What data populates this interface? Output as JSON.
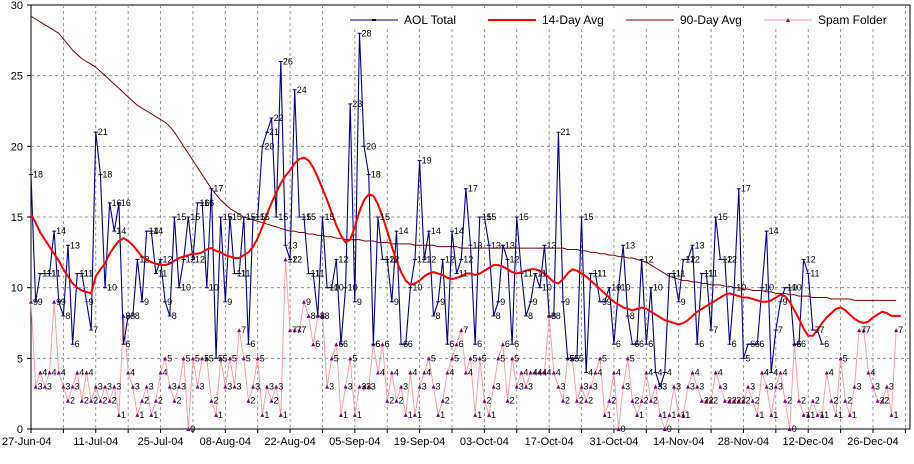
{
  "chart_data": {
    "type": "line",
    "title": "",
    "xlabel": "",
    "ylabel": "",
    "ylim": [
      0,
      30
    ],
    "yticks": [
      0,
      5,
      10,
      15,
      20,
      25,
      30
    ],
    "xlim": [
      0,
      190
    ],
    "xtick_labels": [
      "27-Jun-04",
      "11-Jul-04",
      "25-Jul-04",
      "08-Aug-04",
      "22-Aug-04",
      "05-Sep-04",
      "19-Sep-04",
      "03-Oct-04",
      "17-Oct-04",
      "31-Oct-04",
      "14-Nov-04",
      "28-Nov-04",
      "12-Dec-04",
      "26-Dec-04"
    ],
    "xtick_days": [
      0,
      14,
      28,
      42,
      56,
      70,
      84,
      98,
      112,
      126,
      140,
      154,
      168,
      182
    ],
    "grid": true,
    "legend_position": "top",
    "colors": {
      "aol": "#000080",
      "avg14": "#ff0000",
      "avg90": "#800000",
      "spam": "#ff9999",
      "spam_marker": "#800080",
      "grid": "#808080"
    },
    "series": [
      {
        "name": "AOL Total",
        "start_day": 0,
        "values": [
          18,
          9,
          11,
          11,
          11,
          14,
          9,
          8,
          13,
          6,
          11,
          11,
          9,
          7,
          21,
          18,
          10,
          16,
          14,
          16,
          6,
          8,
          8,
          12,
          9,
          14,
          14,
          11,
          12,
          9,
          8,
          15,
          10,
          12,
          15,
          12,
          16,
          16,
          10,
          17,
          5,
          15,
          9,
          15,
          11,
          11,
          15,
          6,
          15,
          15,
          20,
          21,
          22,
          15,
          26,
          13,
          12,
          24,
          15,
          15,
          11,
          11,
          8,
          15,
          10,
          10,
          12,
          6,
          10,
          23,
          9,
          28,
          20,
          18,
          6,
          15,
          12,
          12,
          9,
          14,
          6,
          6,
          10,
          12,
          19,
          12,
          14,
          8,
          9,
          12,
          6,
          14,
          11,
          12,
          17,
          13,
          6,
          15,
          15,
          13,
          8,
          9,
          13,
          12,
          6,
          15,
          11,
          8,
          9,
          11,
          10,
          13,
          8,
          8,
          21,
          9,
          5,
          5,
          5,
          15,
          4,
          11,
          11,
          9,
          9,
          10,
          6,
          10,
          13,
          8,
          6,
          6,
          12,
          6,
          10,
          4,
          3,
          4,
          11,
          11,
          9,
          12,
          12,
          13,
          6,
          11,
          11,
          7,
          15,
          12,
          12,
          6,
          10,
          17,
          5,
          6,
          6,
          6,
          10,
          14,
          4,
          7,
          9,
          10,
          10,
          6,
          6,
          12,
          11,
          7,
          7,
          6
        ],
        "labels": [
          18,
          9,
          11,
          11,
          11,
          14,
          9,
          8,
          13,
          6,
          11,
          11,
          9,
          7,
          21,
          18,
          10,
          16,
          14,
          16,
          6,
          8,
          8,
          12,
          9,
          14,
          14,
          11,
          12,
          9,
          8,
          15,
          10,
          12,
          15,
          12,
          16,
          16,
          10,
          17,
          5,
          15,
          9,
          15,
          11,
          11,
          15,
          6,
          15,
          15,
          20,
          21,
          22,
          15,
          26,
          13,
          12,
          24,
          15,
          15,
          11,
          11,
          8,
          15,
          10,
          10,
          12,
          6,
          10,
          23,
          9,
          28,
          20,
          18,
          6,
          15,
          12,
          12,
          9,
          14,
          6,
          6,
          10,
          12,
          19,
          12,
          14,
          8,
          9,
          12,
          6,
          14,
          11,
          12,
          17,
          13,
          6,
          15,
          15,
          13,
          8,
          9,
          13,
          12,
          6,
          15,
          11,
          8,
          9,
          11,
          10,
          13,
          8,
          8,
          21,
          9,
          5,
          5,
          5,
          15,
          4,
          11,
          11,
          9,
          9,
          10,
          6,
          10,
          13,
          8,
          6,
          6,
          12,
          6,
          10,
          4,
          3,
          4,
          11,
          11,
          9,
          12,
          12,
          13,
          6,
          11,
          11,
          7,
          15,
          12,
          12,
          6,
          10,
          17,
          5,
          6,
          6,
          6,
          10,
          14,
          4,
          7,
          9,
          10,
          10,
          6,
          6,
          12,
          11,
          7,
          7,
          6
        ]
      },
      {
        "name": "14-Day Avg",
        "start_day": 0,
        "values": [
          15.2,
          14.6,
          13.9,
          13.4,
          12.9,
          12.4,
          11.9,
          11.3,
          10.8,
          10.3,
          10.0,
          9.8,
          9.7,
          9.6,
          10.8,
          11.3,
          11.7,
          12.4,
          12.9,
          13.3,
          13.5,
          13.3,
          13.0,
          12.6,
          12.2,
          12.0,
          11.8,
          11.7,
          11.6,
          11.6,
          11.7,
          11.9,
          12.1,
          12.2,
          12.3,
          12.4,
          12.4,
          12.5,
          12.7,
          12.8,
          12.6,
          12.5,
          12.3,
          12.2,
          12.1,
          12.1,
          12.3,
          12.5,
          12.9,
          13.5,
          14.3,
          15.2,
          16.0,
          16.7,
          17.4,
          17.9,
          18.3,
          18.8,
          19.1,
          19.2,
          19.0,
          18.5,
          17.8,
          17.0,
          16.2,
          15.3,
          14.4,
          13.7,
          13.2,
          13.4,
          14.3,
          15.4,
          16.2,
          16.6,
          16.5,
          15.9,
          15.0,
          14.0,
          12.9,
          11.9,
          11.1,
          10.5,
          10.2,
          10.3,
          10.5,
          10.8,
          11.0,
          11.1,
          11.0,
          10.9,
          10.7,
          10.6,
          10.7,
          10.8,
          11.0,
          11.0,
          10.9,
          11.0,
          11.2,
          11.4,
          11.6,
          11.6,
          11.5,
          11.3,
          11.1,
          11.0,
          11.1,
          11.2,
          11.3,
          11.3,
          11.2,
          11.0,
          10.7,
          10.4,
          10.3,
          10.6,
          11.0,
          11.3,
          11.2,
          11.0,
          10.8,
          10.5,
          10.2,
          9.9,
          9.6,
          9.3,
          9.0,
          8.8,
          8.6,
          8.5,
          8.4,
          8.5,
          8.6,
          8.5,
          8.3,
          8.1,
          7.9,
          7.7,
          7.6,
          7.5,
          7.4,
          7.5,
          7.7,
          8.0,
          8.3,
          8.5,
          8.7,
          8.9,
          9.1,
          9.3,
          9.5,
          9.6,
          9.5,
          9.4,
          9.3,
          9.3,
          9.2,
          9.1,
          9.0,
          9.0,
          9.1,
          9.3,
          9.5,
          9.4,
          9.0,
          8.4,
          7.8,
          7.1,
          6.6,
          6.6,
          7.0,
          7.5,
          7.9,
          8.2,
          8.5,
          8.6,
          8.4,
          8.1,
          7.8,
          7.6,
          7.5,
          7.6,
          7.9,
          8.1,
          8.3,
          8.2,
          8.0,
          8.0,
          8.0
        ],
        "labels": []
      },
      {
        "name": "90-Day Avg",
        "start_day": 0,
        "values": [
          29.2,
          29.0,
          28.8,
          28.6,
          28.4,
          28.2,
          28.0,
          27.6,
          27.2,
          26.8,
          26.5,
          26.2,
          26.0,
          25.8,
          25.6,
          25.3,
          25.0,
          24.7,
          24.4,
          24.1,
          23.8,
          23.5,
          23.2,
          22.9,
          22.7,
          22.5,
          22.3,
          22.1,
          21.9,
          21.7,
          21.4,
          21.0,
          20.5,
          20.0,
          19.5,
          19.0,
          18.5,
          18.0,
          17.5,
          17.0,
          16.6,
          16.2,
          15.9,
          15.6,
          15.4,
          15.2,
          15.0,
          14.9,
          14.8,
          14.7,
          14.6,
          14.5,
          14.4,
          14.3,
          14.2,
          14.1,
          14.0,
          14.0,
          13.9,
          13.9,
          13.8,
          13.8,
          13.7,
          13.7,
          13.6,
          13.6,
          13.5,
          13.5,
          13.4,
          13.4,
          13.4,
          13.4,
          13.3,
          13.3,
          13.3,
          13.2,
          13.2,
          13.2,
          13.1,
          13.1,
          13.1,
          13.1,
          13.1,
          13.0,
          13.0,
          13.0,
          13.0,
          13.0,
          12.9,
          12.9,
          12.9,
          12.9,
          12.9,
          12.8,
          12.8,
          12.8,
          12.8,
          12.8,
          12.8,
          12.8,
          12.8,
          12.8,
          12.8,
          12.8,
          12.8,
          12.8,
          12.8,
          12.8,
          12.8,
          12.8,
          12.8,
          12.8,
          12.8,
          12.8,
          12.8,
          12.8,
          12.7,
          12.7,
          12.7,
          12.6,
          12.6,
          12.5,
          12.5,
          12.4,
          12.4,
          12.3,
          12.3,
          12.2,
          12.2,
          12.1,
          12.1,
          12.0,
          11.9,
          11.8,
          11.6,
          11.4,
          11.2,
          11.0,
          10.8,
          10.7,
          10.6,
          10.5,
          10.5,
          10.4,
          10.4,
          10.3,
          10.3,
          10.2,
          10.2,
          10.2,
          10.1,
          10.1,
          10.0,
          10.0,
          9.9,
          9.9,
          9.8,
          9.8,
          9.8,
          9.7,
          9.7,
          9.6,
          9.6,
          9.6,
          9.5,
          9.5,
          9.4,
          9.4,
          9.4,
          9.3,
          9.3,
          9.3,
          9.3,
          9.2,
          9.2,
          9.2,
          9.2,
          9.2,
          9.1,
          9.1,
          9.1,
          9.1,
          9.1,
          9.1,
          9.1,
          9.1,
          9.1,
          9.1
        ],
        "labels": []
      },
      {
        "name": "Spam Folder",
        "start_day": 0,
        "values": [
          9,
          3,
          4,
          3,
          4,
          9,
          4,
          3,
          2,
          3,
          4,
          2,
          4,
          2,
          3,
          2,
          3,
          2,
          3,
          1,
          8,
          4,
          3,
          1,
          2,
          3,
          1,
          2,
          4,
          5,
          3,
          2,
          3,
          5,
          0,
          5,
          3,
          5,
          5,
          2,
          1,
          5,
          3,
          5,
          3,
          7,
          5,
          2,
          3,
          5,
          1,
          3,
          2,
          3,
          1,
          12,
          7,
          7,
          7,
          9,
          8,
          6,
          8,
          8,
          3,
          5,
          6,
          1,
          3,
          5,
          1,
          3,
          3,
          3,
          6,
          4,
          6,
          2,
          4,
          2,
          3,
          1,
          4,
          1,
          3,
          4,
          5,
          3,
          1,
          2,
          4,
          5,
          6,
          7,
          4,
          5,
          1,
          5,
          2,
          1,
          3,
          5,
          6,
          2,
          5,
          3,
          4,
          3,
          4,
          4,
          4,
          4,
          8,
          4,
          3,
          2,
          5,
          5,
          2,
          3,
          2,
          3,
          4,
          5,
          1,
          2,
          4,
          0,
          3,
          5,
          2,
          1,
          2,
          4,
          2,
          3,
          1,
          0,
          1,
          3,
          1,
          1,
          3,
          4,
          3,
          2,
          2,
          2,
          4,
          3,
          2,
          2,
          2,
          2,
          2,
          3,
          2,
          1,
          4,
          3,
          1,
          3,
          4,
          2,
          0,
          6,
          2,
          1,
          1,
          2,
          1,
          1,
          4,
          2,
          1,
          5,
          2,
          1,
          3,
          7,
          7,
          4,
          3,
          2,
          2,
          3,
          1,
          7
        ],
        "labels": [
          9,
          3,
          4,
          3,
          4,
          9,
          4,
          3,
          2,
          3,
          4,
          2,
          4,
          2,
          3,
          2,
          3,
          2,
          3,
          1,
          8,
          4,
          3,
          1,
          2,
          3,
          1,
          2,
          4,
          5,
          3,
          2,
          3,
          5,
          0,
          5,
          3,
          5,
          5,
          2,
          1,
          5,
          3,
          5,
          3,
          7,
          5,
          2,
          3,
          5,
          1,
          3,
          2,
          3,
          1,
          12,
          7,
          7,
          7,
          9,
          8,
          6,
          8,
          8,
          3,
          5,
          6,
          1,
          3,
          5,
          1,
          3,
          3,
          3,
          6,
          4,
          6,
          2,
          4,
          2,
          3,
          1,
          4,
          1,
          3,
          4,
          5,
          3,
          1,
          2,
          4,
          5,
          6,
          7,
          4,
          5,
          1,
          5,
          2,
          1,
          3,
          5,
          6,
          2,
          5,
          3,
          4,
          3,
          4,
          4,
          4,
          4,
          8,
          4,
          3,
          2,
          5,
          5,
          2,
          3,
          2,
          3,
          4,
          5,
          1,
          2,
          4,
          0,
          3,
          5,
          2,
          1,
          2,
          4,
          2,
          3,
          1,
          0,
          1,
          3,
          1,
          1,
          3,
          4,
          3,
          2,
          2,
          2,
          4,
          3,
          2,
          2,
          2,
          2,
          2,
          3,
          2,
          1,
          4,
          3,
          1,
          3,
          4,
          2,
          0,
          6,
          2,
          1,
          1,
          2,
          1,
          1,
          4,
          2,
          1,
          5,
          2,
          1,
          3,
          7,
          7,
          4,
          3,
          2,
          2,
          3,
          1,
          7
        ]
      }
    ]
  }
}
